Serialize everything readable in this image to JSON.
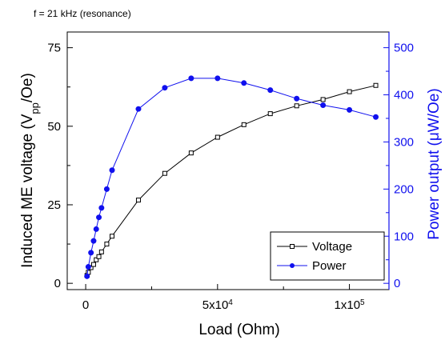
{
  "chart_data": {
    "type": "line",
    "annotation": "f = 21 kHz (resonance)",
    "xlabel": "Load (Ohm)",
    "ylabel_left": "Induced ME voltage (V_pp/Oe)",
    "ylabel_left_main": "Induced ME voltage (V",
    "ylabel_left_sub": "pp",
    "ylabel_left_tail": "/Oe)",
    "ylabel_right": "Power output (μW/Oe)",
    "xlim": [
      -7000,
      115000
    ],
    "ylim_left": [
      -2,
      80
    ],
    "ylim_right": [
      -13.3,
      533.3
    ],
    "x_ticks": [
      {
        "value": 0,
        "label": "0"
      },
      {
        "value": 50000,
        "label": "5x10",
        "exp": "4"
      },
      {
        "value": 100000,
        "label": "1x10",
        "exp": "5"
      }
    ],
    "y_left_ticks": [
      {
        "value": 0,
        "label": "0"
      },
      {
        "value": 25,
        "label": "25"
      },
      {
        "value": 50,
        "label": "50"
      },
      {
        "value": 75,
        "label": "75"
      }
    ],
    "y_right_ticks": [
      {
        "value": 0,
        "label": "0"
      },
      {
        "value": 100,
        "label": "100"
      },
      {
        "value": 200,
        "label": "200"
      },
      {
        "value": 300,
        "label": "300"
      },
      {
        "value": 400,
        "label": "400"
      },
      {
        "value": 500,
        "label": "500"
      }
    ],
    "legend_position": "bottom-right",
    "series": [
      {
        "name": "Voltage",
        "axis": "left",
        "color": "#000000",
        "marker": "open-square",
        "x": [
          500,
          1000,
          2000,
          3000,
          4000,
          5000,
          6000,
          8000,
          10000,
          20000,
          30000,
          40000,
          50000,
          60000,
          70000,
          80000,
          90000,
          100000,
          110000
        ],
        "y": [
          2.5,
          3.5,
          5,
          6,
          7.5,
          8.5,
          10,
          12.5,
          15,
          26.5,
          35,
          41.5,
          46.5,
          50.5,
          54,
          56.5,
          58.5,
          61,
          63
        ]
      },
      {
        "name": "Power",
        "axis": "right",
        "color": "#1010ee",
        "marker": "filled-circle",
        "x": [
          500,
          1000,
          2000,
          3000,
          4000,
          5000,
          6000,
          8000,
          10000,
          20000,
          30000,
          40000,
          50000,
          60000,
          70000,
          80000,
          90000,
          100000,
          110000
        ],
        "y": [
          15,
          35,
          65,
          90,
          115,
          140,
          160,
          200,
          240,
          370,
          415,
          435,
          435,
          425,
          410,
          392,
          378,
          368,
          353
        ]
      }
    ]
  }
}
